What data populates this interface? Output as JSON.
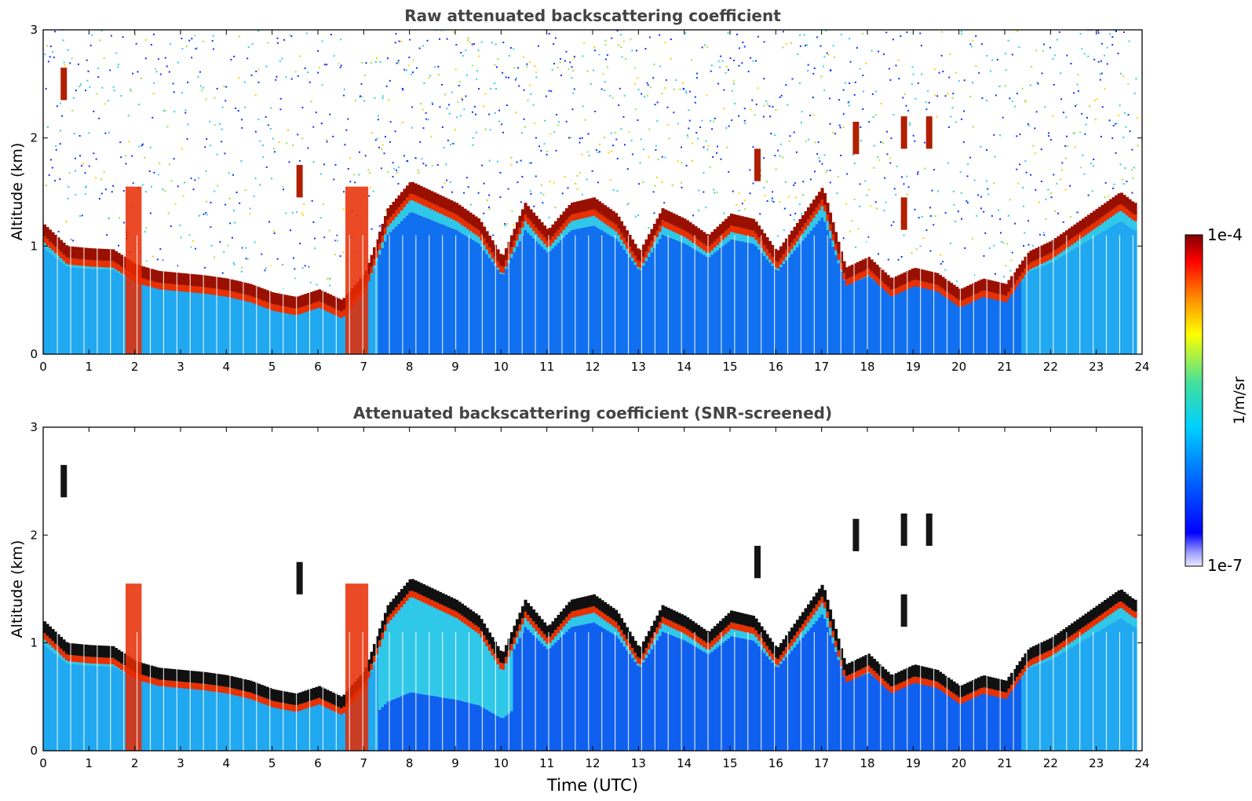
{
  "chart_data": [
    {
      "type": "heatmap",
      "title": "Raw attenuated backscattering coefficient",
      "xlabel": "",
      "ylabel": "Altitude (km)",
      "xlim": [
        0,
        24
      ],
      "ylim": [
        0,
        3
      ],
      "xticks": [
        0,
        1,
        2,
        3,
        4,
        5,
        6,
        7,
        8,
        9,
        10,
        11,
        12,
        13,
        14,
        15,
        16,
        17,
        18,
        19,
        20,
        21,
        22,
        23,
        24
      ],
      "yticks": [
        0,
        1,
        2,
        3
      ],
      "screened": false,
      "layer_top_km": {
        "time_utc": [
          0,
          0.5,
          1,
          1.5,
          2,
          2.5,
          3,
          3.5,
          4,
          4.5,
          5,
          5.5,
          6,
          6.5,
          7,
          7.5,
          8,
          8.5,
          9,
          9.5,
          10,
          10.5,
          11,
          11.5,
          12,
          12.5,
          13,
          13.5,
          14,
          14.5,
          15,
          15.5,
          16,
          16.5,
          17,
          17.5,
          18,
          18.5,
          19,
          19.5,
          20,
          20.5,
          21,
          21.5,
          22,
          22.5,
          23,
          23.5,
          23.8
        ],
        "altitude_km": [
          1.15,
          0.95,
          0.93,
          0.92,
          0.78,
          0.72,
          0.7,
          0.68,
          0.65,
          0.6,
          0.52,
          0.48,
          0.55,
          0.45,
          0.7,
          1.3,
          1.55,
          1.45,
          1.35,
          1.2,
          0.85,
          1.35,
          1.1,
          1.35,
          1.4,
          1.25,
          0.9,
          1.3,
          1.2,
          1.05,
          1.25,
          1.2,
          0.9,
          1.2,
          1.5,
          0.75,
          0.85,
          0.65,
          0.75,
          0.7,
          0.55,
          0.65,
          0.6,
          0.9,
          1.0,
          1.15,
          1.3,
          1.45,
          1.35
        ]
      },
      "elevated_cloud_patches": [
        {
          "time_utc": 0.45,
          "altitude_km": 2.5
        },
        {
          "time_utc": 5.6,
          "altitude_km": 1.6
        },
        {
          "time_utc": 15.6,
          "altitude_km": 1.75
        },
        {
          "time_utc": 17.75,
          "altitude_km": 2.0
        },
        {
          "time_utc": 18.8,
          "altitude_km": 2.05
        },
        {
          "time_utc": 19.35,
          "altitude_km": 2.05
        },
        {
          "time_utc": 18.8,
          "altitude_km": 1.3
        }
      ]
    },
    {
      "type": "heatmap",
      "title": "Attenuated backscattering coefficient (SNR-screened)",
      "xlabel": "Time (UTC)",
      "ylabel": "Altitude (km)",
      "xlim": [
        0,
        24
      ],
      "ylim": [
        0,
        3
      ],
      "xticks": [
        0,
        1,
        2,
        3,
        4,
        5,
        6,
        7,
        8,
        9,
        10,
        11,
        12,
        13,
        14,
        15,
        16,
        17,
        18,
        19,
        20,
        21,
        22,
        23,
        24
      ],
      "yticks": [
        0,
        1,
        2,
        3
      ],
      "screened": true
    }
  ],
  "colorbar": {
    "max_label": "1e-4",
    "min_label": "1e-7",
    "unit": "1/m/sr",
    "colormap": "jet"
  }
}
